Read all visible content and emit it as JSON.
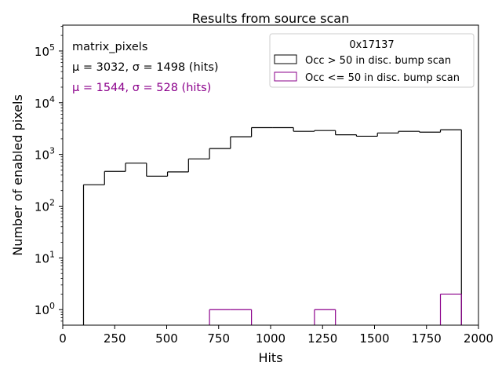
{
  "chart_data": {
    "type": "histogram",
    "title": "Results from source scan",
    "xlabel": "Hits",
    "ylabel": "Number of enabled pixels",
    "xlim": [
      0,
      2000
    ],
    "ylim_log10": [
      -0.3,
      5.5
    ],
    "yscale": "log",
    "x_ticks": [
      {
        "value": 0,
        "label": "0"
      },
      {
        "value": 250,
        "label": "250"
      },
      {
        "value": 500,
        "label": "500"
      },
      {
        "value": 750,
        "label": "750"
      },
      {
        "value": 1000,
        "label": "1000"
      },
      {
        "value": 1250,
        "label": "1250"
      },
      {
        "value": 1500,
        "label": "1500"
      },
      {
        "value": 1750,
        "label": "1750"
      },
      {
        "value": 2000,
        "label": "2000"
      }
    ],
    "y_ticks": [
      {
        "exp": 0,
        "base": "10",
        "sup": "0"
      },
      {
        "exp": 1,
        "base": "10",
        "sup": "1"
      },
      {
        "exp": 2,
        "base": "10",
        "sup": "2"
      },
      {
        "exp": 3,
        "base": "10",
        "sup": "3"
      },
      {
        "exp": 4,
        "base": "10",
        "sup": "4"
      },
      {
        "exp": 5,
        "base": "10",
        "sup": "5"
      }
    ],
    "bin_edges": [
      100,
      201,
      302,
      403,
      504,
      605,
      706,
      807,
      908,
      1009,
      1110,
      1211,
      1312,
      1413,
      1514,
      1615,
      1716,
      1817,
      1918
    ],
    "series": [
      {
        "name": "Occ > 50 in disc. bump scan",
        "color": "#000000",
        "counts": [
          260,
          470,
          680,
          380,
          460,
          820,
          1300,
          2200,
          3300,
          3300,
          2800,
          2900,
          2400,
          2250,
          2600,
          2800,
          2700,
          3000
        ]
      },
      {
        "name": "Occ <= 50 in disc. bump scan",
        "color": "#8b008b",
        "counts": [
          0,
          0,
          0,
          0,
          0,
          0,
          1,
          1,
          0,
          0,
          0,
          1,
          0,
          0,
          0,
          0,
          0,
          2
        ]
      }
    ],
    "annotations": [
      {
        "text": "matrix_pixels",
        "color": "#000000"
      },
      {
        "text": "μ = 3032, σ = 1498 (hits)",
        "color": "#000000"
      },
      {
        "text": "μ = 1544, σ = 528 (hits)",
        "color": "#8b008b"
      }
    ],
    "legend": {
      "title": "0x17137",
      "location": "top-right"
    }
  }
}
